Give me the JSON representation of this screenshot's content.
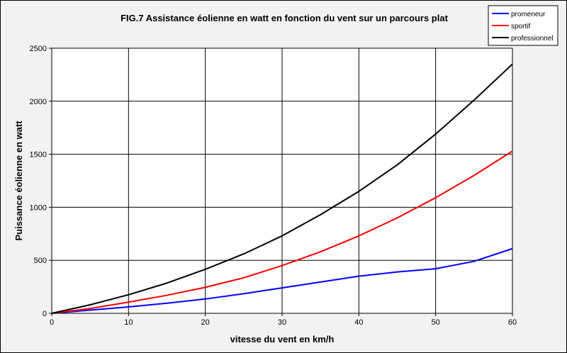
{
  "chart_data": {
    "type": "line",
    "title": "FIG.7 Assistance éolienne en watt en fonction du vent sur un parcours plat",
    "xlabel": "vitesse du vent en km/h",
    "ylabel": "Puissance éolienne en watt",
    "xlim": [
      0,
      60
    ],
    "ylim": [
      0,
      2500
    ],
    "xticks": [
      0,
      10,
      20,
      30,
      40,
      50,
      60
    ],
    "yticks": [
      0,
      500,
      1000,
      1500,
      2000,
      2500
    ],
    "grid": true,
    "legend_position": "top-right",
    "x": [
      0,
      5,
      10,
      15,
      20,
      25,
      30,
      35,
      40,
      45,
      50,
      55,
      60
    ],
    "series": [
      {
        "name": "promeneur",
        "color": "#0000ff",
        "values": [
          0,
          30,
          60,
          95,
          135,
          185,
          240,
          295,
          350,
          390,
          420,
          490,
          610
        ]
      },
      {
        "name": "sportif",
        "color": "#ff0000",
        "values": [
          0,
          45,
          105,
          170,
          245,
          335,
          450,
          580,
          730,
          900,
          1090,
          1300,
          1530
        ]
      },
      {
        "name": "professionnel",
        "color": "#000000",
        "values": [
          0,
          80,
          175,
          285,
          415,
          560,
          730,
          930,
          1150,
          1400,
          1690,
          2010,
          2350
        ]
      }
    ]
  }
}
